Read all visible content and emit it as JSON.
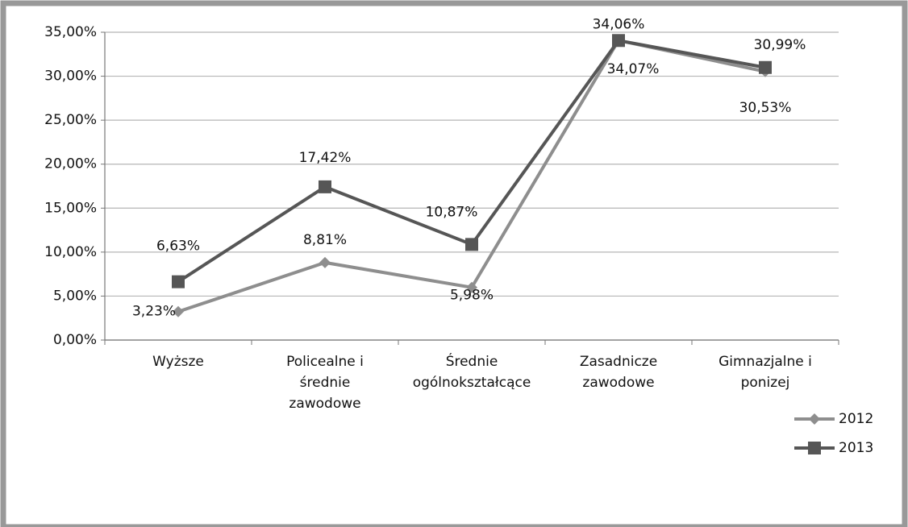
{
  "chart_data": {
    "type": "line",
    "categories": [
      "Wyższe",
      "Policealne i\nśrednie\nzawodowe",
      "Średnie\nogólnokształcące",
      "Zasadnicze\nzawodowe",
      "Gimnazjalne i\nponizej"
    ],
    "series": [
      {
        "name": "2012",
        "color": "#8e8e8e",
        "marker": "diamond",
        "values": [
          3.23,
          8.81,
          5.98,
          34.07,
          30.53
        ],
        "value_labels": [
          "3,23%",
          "8,81%",
          "5,98%",
          "34,07%",
          "30,53%"
        ]
      },
      {
        "name": "2013",
        "color": "#565656",
        "marker": "square",
        "values": [
          6.63,
          17.42,
          10.87,
          34.06,
          30.99
        ],
        "value_labels": [
          "6,63%",
          "17,42%",
          "10,87%",
          "34,06%",
          "30,99%"
        ]
      }
    ],
    "ylim": [
      0,
      35
    ],
    "yticks": [
      {
        "value": 0,
        "label": "0,00%"
      },
      {
        "value": 5,
        "label": "5,00%"
      },
      {
        "value": 10,
        "label": "10,00%"
      },
      {
        "value": 15,
        "label": "15,00%"
      },
      {
        "value": 20,
        "label": "20,00%"
      },
      {
        "value": 25,
        "label": "25,00%"
      },
      {
        "value": 30,
        "label": "30,00%"
      },
      {
        "value": 35,
        "label": "35,00%"
      }
    ],
    "grid": true,
    "legend": "right"
  }
}
